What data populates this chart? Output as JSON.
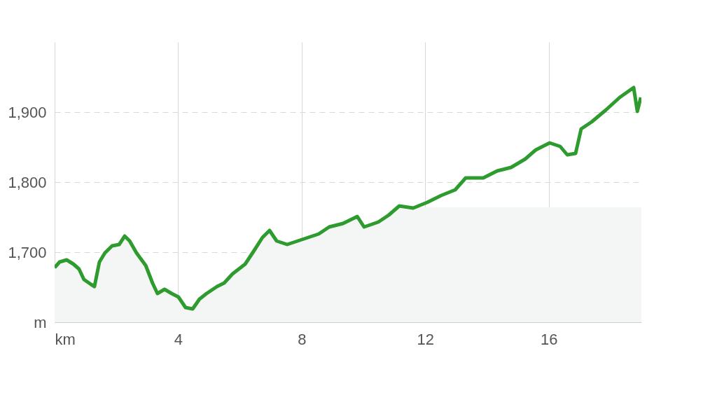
{
  "chart_data": {
    "type": "line",
    "xlim": [
      0,
      19
    ],
    "xticks": [
      {
        "value": 0,
        "label": "km"
      },
      4,
      8,
      12,
      16
    ],
    "ylim": [
      1600,
      2000
    ],
    "yticks": [
      {
        "value": 1600,
        "label": "m"
      },
      {
        "value": 1700,
        "label": "1,700"
      },
      {
        "value": 1800,
        "label": "1,800"
      },
      {
        "value": 1900,
        "label": "1,900"
      }
    ],
    "grid": true,
    "series": [
      {
        "type": "area",
        "color": "#f4f5f5",
        "x": [
          0,
          0.16,
          0.39,
          0.61,
          0.79,
          0.95,
          1.18,
          1.29,
          1.45,
          1.63,
          1.86,
          2.09,
          2.27,
          2.43,
          2.65,
          2.95,
          3.17,
          3.33,
          3.56,
          3.79,
          4.01,
          4.24,
          4.47,
          4.69,
          4.92,
          5.26,
          5.49,
          5.76,
          6.17,
          6.44,
          6.73,
          6.96,
          7.19,
          7.53,
          7.87,
          8.21,
          8.55,
          8.89,
          9.34,
          9.8,
          10.02,
          10.48,
          10.82,
          11.16,
          12,
          19
        ],
        "values": [
          1678,
          1686,
          1689,
          1683,
          1676,
          1661,
          1654,
          1651,
          1686,
          1699,
          1709,
          1711,
          1723,
          1716,
          1699,
          1681,
          1656,
          1641,
          1647,
          1641,
          1636,
          1621,
          1619,
          1633,
          1641,
          1651,
          1656,
          1669,
          1683,
          1701,
          1721,
          1731,
          1716,
          1711,
          1716,
          1721,
          1726,
          1736,
          1741,
          1751,
          1736,
          1743,
          1753,
          1764,
          1764,
          1764
        ]
      },
      {
        "color": "#2e9b2e",
        "x": [
          0,
          0.16,
          0.39,
          0.61,
          0.79,
          0.95,
          1.18,
          1.29,
          1.45,
          1.63,
          1.86,
          2.09,
          2.27,
          2.43,
          2.65,
          2.95,
          3.17,
          3.33,
          3.56,
          3.79,
          4.01,
          4.24,
          4.47,
          4.69,
          4.92,
          5.26,
          5.49,
          5.76,
          6.17,
          6.44,
          6.73,
          6.96,
          7.19,
          7.53,
          7.87,
          8.21,
          8.55,
          8.89,
          9.34,
          9.8,
          10.02,
          10.48,
          10.82,
          11.16,
          11.61,
          12.06,
          12.52,
          12.97,
          13.31,
          13.88,
          14.33,
          14.78,
          15.24,
          15.58,
          16.03,
          16.37,
          16.6,
          16.87,
          17.05,
          17.39,
          17.85,
          18.3,
          18.75,
          18.87,
          18.98
        ],
        "values": [
          1678,
          1686,
          1689,
          1683,
          1676,
          1661,
          1654,
          1651,
          1686,
          1699,
          1709,
          1711,
          1723,
          1716,
          1699,
          1681,
          1656,
          1641,
          1647,
          1641,
          1636,
          1621,
          1619,
          1633,
          1641,
          1651,
          1656,
          1669,
          1683,
          1701,
          1721,
          1731,
          1716,
          1711,
          1716,
          1721,
          1726,
          1736,
          1741,
          1751,
          1736,
          1743,
          1753,
          1766,
          1763,
          1771,
          1781,
          1789,
          1806,
          1806,
          1816,
          1821,
          1833,
          1846,
          1856,
          1851,
          1839,
          1841,
          1876,
          1886,
          1903,
          1921,
          1935,
          1901,
          1921
        ]
      }
    ]
  }
}
